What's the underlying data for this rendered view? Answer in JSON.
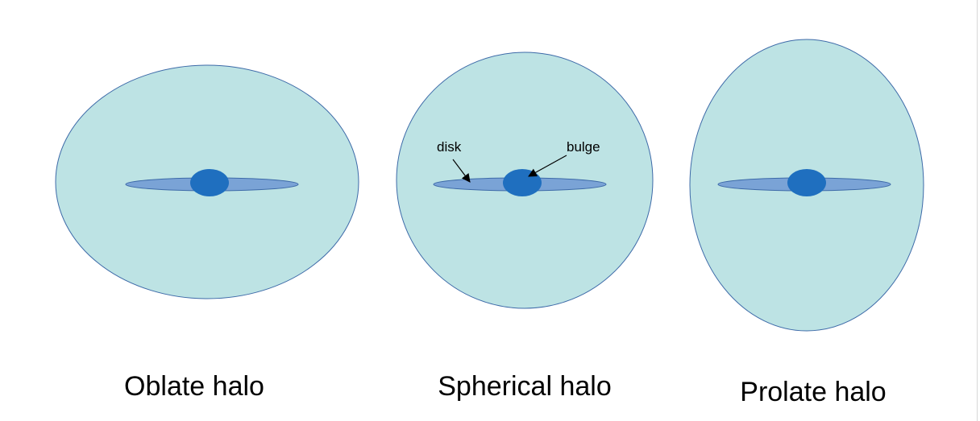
{
  "colors": {
    "halo_fill": "#bde3e4",
    "halo_stroke": "#3d6aa8",
    "disk_fill": "#7aa3d6",
    "disk_stroke": "#3d6aa8",
    "bulge_fill": "#1f6fbf",
    "arrow": "#000000"
  },
  "panels": [
    {
      "caption": "Oblate halo"
    },
    {
      "caption": "Spherical halo",
      "disk_label": "disk",
      "bulge_label": "bulge"
    },
    {
      "caption": "Prolate halo"
    }
  ]
}
